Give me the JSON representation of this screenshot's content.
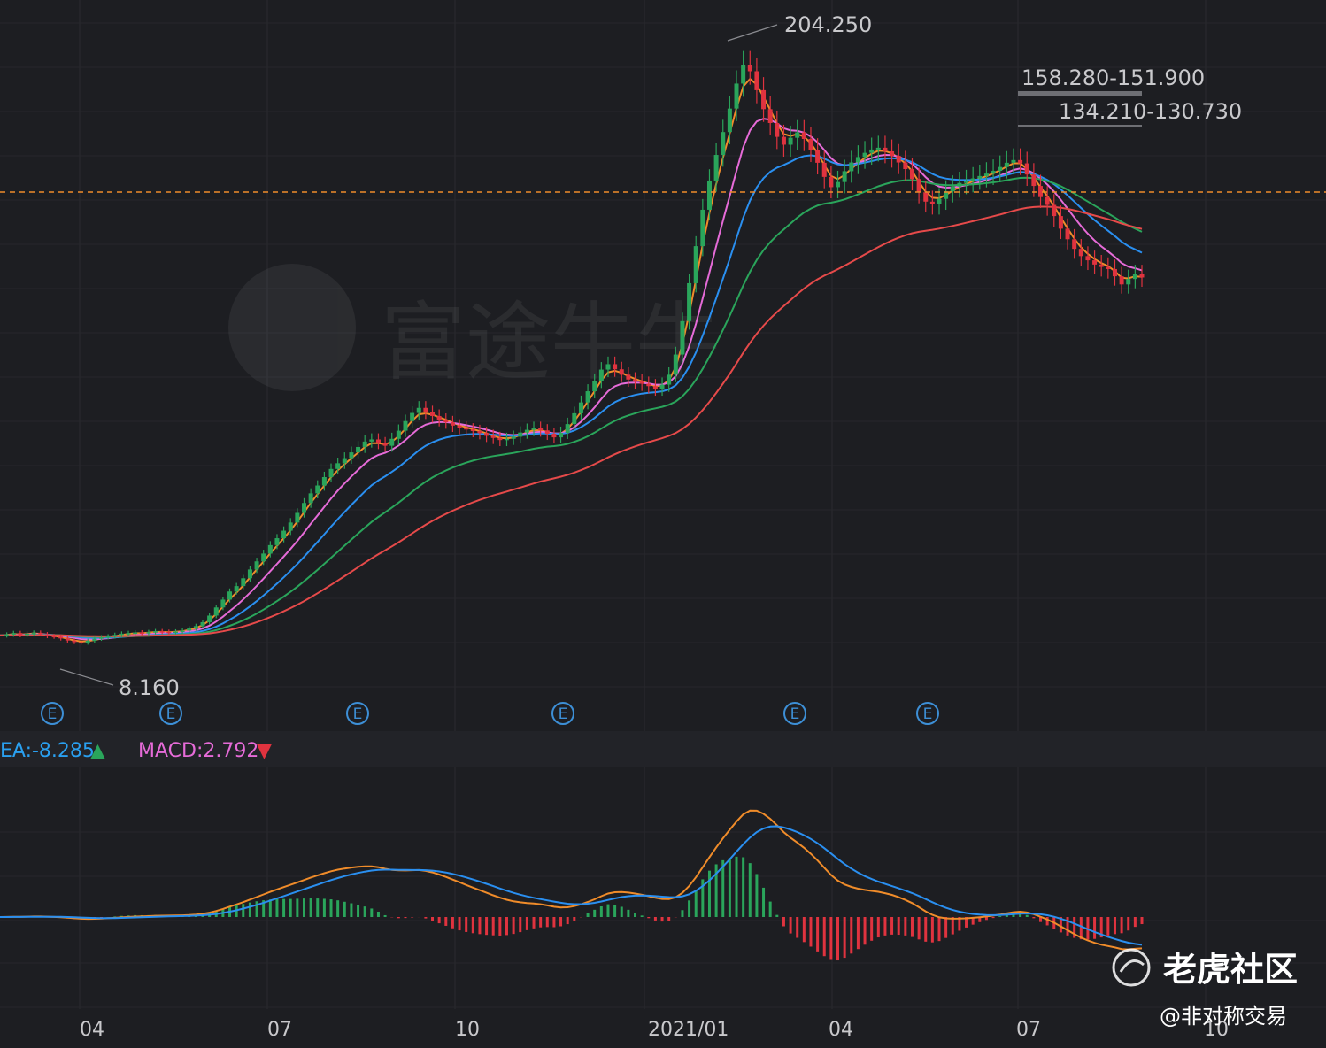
{
  "chart_data": [
    {
      "type": "candlestick",
      "name": "price",
      "x_ticks": [
        "04",
        "07",
        "10",
        "2021/01",
        "04",
        "07",
        "10"
      ],
      "annotations": {
        "high": "204.250",
        "low": "8.160",
        "zone1": "158.280-151.900",
        "zone2": "134.210-130.730"
      },
      "earnings_markers": [
        "E",
        "E",
        "E",
        "E",
        "E",
        "E"
      ],
      "ylim": [
        0,
        215
      ],
      "close": [
        11.2,
        11.5,
        12.0,
        11.3,
        11.8,
        12.1,
        11.6,
        11.0,
        10.8,
        10.2,
        9.5,
        9.0,
        8.8,
        9.4,
        10.1,
        10.6,
        10.9,
        11.4,
        11.8,
        12.0,
        12.2,
        11.9,
        12.3,
        12.6,
        12.4,
        12.2,
        12.5,
        12.8,
        13.5,
        14.3,
        15.6,
        17.8,
        20.5,
        23.1,
        25.8,
        27.6,
        30.2,
        33.1,
        35.8,
        38.4,
        41.2,
        43.5,
        46.0,
        48.7,
        51.9,
        55.2,
        58.4,
        61.0,
        63.8,
        66.5,
        68.4,
        70.1,
        72.0,
        73.8,
        75.6,
        76.3,
        75.1,
        74.2,
        76.5,
        79.2,
        82.4,
        85.1,
        86.8,
        85.3,
        84.1,
        82.8,
        82.0,
        80.9,
        80.2,
        79.6,
        79.1,
        78.4,
        77.5,
        76.8,
        76.1,
        76.5,
        77.2,
        78.6,
        79.5,
        80.1,
        79.3,
        78.2,
        77.0,
        78.5,
        81.4,
        85.0,
        88.6,
        92.3,
        95.8,
        99.5,
        101.3,
        99.6,
        97.8,
        96.2,
        95.5,
        94.8,
        94.0,
        93.2,
        94.5,
        97.8,
        104.5,
        115.6,
        128.2,
        140.5,
        152.6,
        162.3,
        170.8,
        178.4,
        186.2,
        194.5,
        200.8,
        198.6,
        192.3,
        186.0,
        181.4,
        176.8,
        174.2,
        176.5,
        178.3,
        176.1,
        172.4,
        168.2,
        163.5,
        160.1,
        161.8,
        165.4,
        168.3,
        170.1,
        171.5,
        172.6,
        173.2,
        172.0,
        170.5,
        168.3,
        166.1,
        162.8,
        158.4,
        155.3,
        154.6,
        156.2,
        158.7,
        160.3,
        161.5,
        162.1,
        163.0,
        163.8,
        164.6,
        165.5,
        166.8,
        168.2,
        169.1,
        168.0,
        164.3,
        160.5,
        156.8,
        154.2,
        150.5,
        146.3,
        142.8,
        139.6,
        137.2,
        135.8,
        134.4,
        133.6,
        132.9,
        130.5,
        127.8,
        129.6,
        131.2,
        130.1
      ]
    },
    {
      "type": "line",
      "name": "macd",
      "x_ticks": [
        "04",
        "07",
        "10",
        "2021/01",
        "04",
        "07",
        "10"
      ],
      "legend": {
        "dea": "EA:-8.285",
        "dea_arrow": "▲",
        "macd": "MACD:2.792",
        "macd_arrow": "▼"
      }
    }
  ],
  "colors": {
    "up": "#2aa55b",
    "down": "#e0333f",
    "price_line": "#ffffff",
    "ma_orange": "#f08c2a",
    "ma_pink": "#e66bd8",
    "ma_blue": "#2a8ff0",
    "ma_green": "#2aa55b",
    "ma_red": "#e64a4a",
    "dea_text": "#2aa0f0",
    "macd_text": "#e66bd8"
  },
  "watermark": {
    "logo_text": "老虎社区",
    "handle": "@非对称交易",
    "bg_brand": "富途牛牛"
  }
}
